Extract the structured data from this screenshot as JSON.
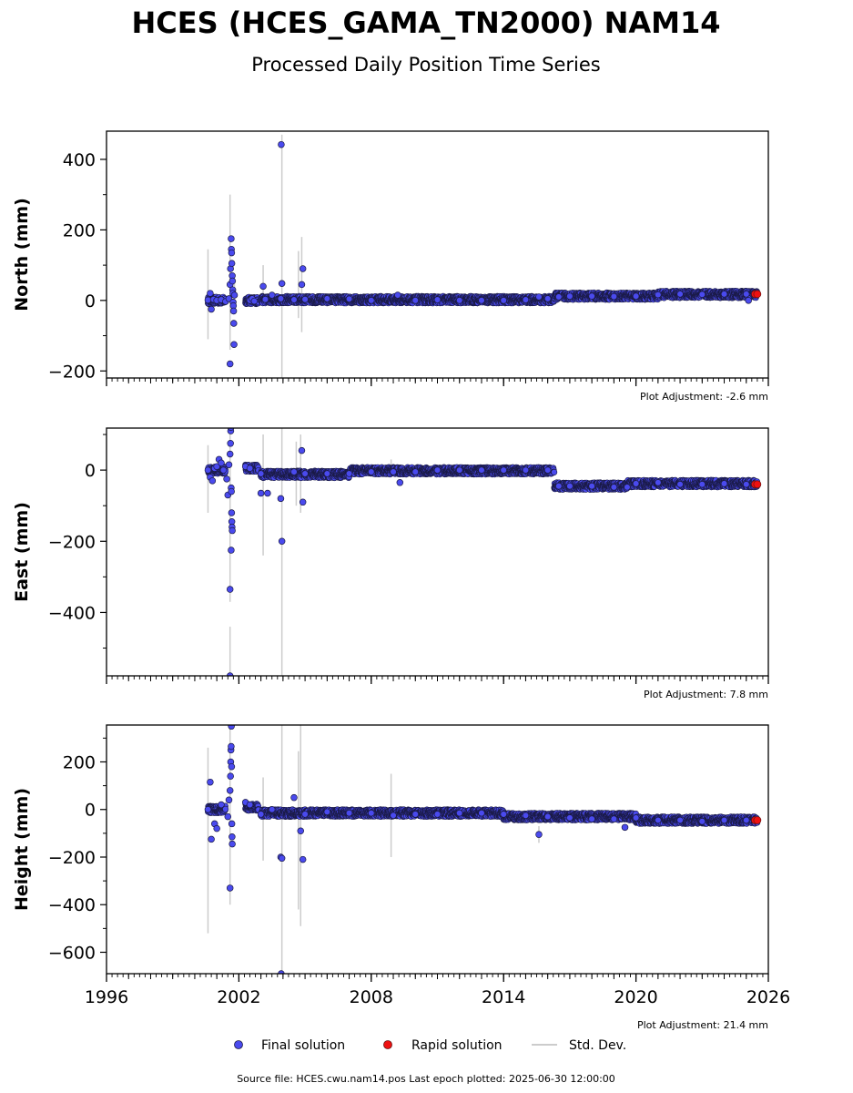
{
  "title": "HCES (HCES_GAMA_TN2000) NAM14",
  "subtitle": "Processed Daily Position Time Series",
  "legend": {
    "final": "Final solution",
    "rapid": "Rapid solution",
    "std": "Std. Dev."
  },
  "footer": "Source file: HCES.cwu.nam14.pos  Last epoch plotted: 2025-06-30 12:00:00",
  "colors": {
    "final": "#4a4aee",
    "final_edge": "#1a1a44",
    "rapid": "#ee1111",
    "std": "#cccccc"
  },
  "chart_data": [
    {
      "type": "scatter",
      "ylabel": "North (mm)",
      "adjustment": "Plot Adjustment: -2.6 mm",
      "xlim": [
        1996,
        2026
      ],
      "ylim": [
        -220,
        480
      ],
      "yticks": [
        -200,
        0,
        200,
        400
      ],
      "xticks": [
        1996,
        2002,
        2008,
        2014,
        2020,
        2026
      ],
      "show_xtick_labels": false,
      "series": [
        {
          "name": "Final solution",
          "points": [
            [
              2000.6,
              1
            ],
            [
              2000.7,
              20
            ],
            [
              2000.75,
              -25
            ],
            [
              2000.85,
              3
            ],
            [
              2001.0,
              0
            ],
            [
              2001.2,
              2
            ],
            [
              2001.4,
              -3
            ],
            [
              2001.55,
              5
            ],
            [
              2001.6,
              45
            ],
            [
              2001.62,
              90
            ],
            [
              2001.65,
              175
            ],
            [
              2001.66,
              145
            ],
            [
              2001.67,
              135
            ],
            [
              2001.68,
              105
            ],
            [
              2001.7,
              70
            ],
            [
              2001.71,
              55
            ],
            [
              2001.72,
              30
            ],
            [
              2001.73,
              20
            ],
            [
              2001.74,
              -5
            ],
            [
              2001.75,
              -15
            ],
            [
              2001.76,
              -30
            ],
            [
              2001.77,
              -65
            ],
            [
              2001.78,
              -125
            ],
            [
              2001.6,
              -180
            ],
            [
              2001.8,
              15
            ],
            [
              2002.5,
              0
            ],
            [
              2002.6,
              5
            ],
            [
              2002.7,
              -2
            ],
            [
              2003.1,
              40
            ],
            [
              2003.2,
              3
            ],
            [
              2003.5,
              15
            ],
            [
              2003.9,
              5
            ],
            [
              2003.95,
              48
            ],
            [
              2003.92,
              442
            ],
            [
              2004.5,
              2
            ],
            [
              2004.85,
              45
            ],
            [
              2004.9,
              90
            ],
            [
              2005.0,
              3
            ],
            [
              2006.0,
              5
            ],
            [
              2007.0,
              4
            ],
            [
              2008.0,
              0
            ],
            [
              2009.2,
              15
            ],
            [
              2010.0,
              0
            ],
            [
              2011.0,
              2
            ],
            [
              2012.0,
              0
            ],
            [
              2013.0,
              0
            ],
            [
              2014.0,
              0
            ],
            [
              2015.0,
              2
            ],
            [
              2015.6,
              10
            ],
            [
              2016.0,
              5
            ],
            [
              2016.5,
              10
            ],
            [
              2017.0,
              12
            ],
            [
              2018.0,
              12
            ],
            [
              2019.0,
              11
            ],
            [
              2020.0,
              12
            ],
            [
              2021.0,
              16
            ],
            [
              2022.0,
              18
            ],
            [
              2023.0,
              17
            ],
            [
              2024.0,
              18
            ],
            [
              2025.0,
              18
            ],
            [
              2025.1,
              0
            ]
          ],
          "bands": [
            [
              2000.6,
              2001.4,
              0
            ],
            [
              2002.3,
              2002.9,
              0
            ],
            [
              2003.0,
              2016.3,
              2
            ],
            [
              2016.3,
              2021.0,
              12
            ],
            [
              2021.0,
              2025.5,
              17
            ]
          ]
        },
        {
          "name": "Rapid solution",
          "points": [
            [
              2025.4,
              18
            ],
            [
              2025.5,
              18
            ]
          ]
        }
      ],
      "std_dev": [
        [
          2000.6,
          -110,
          145
        ],
        [
          2001.6,
          -140,
          300
        ],
        [
          2001.8,
          -20,
          60
        ],
        [
          2003.1,
          -10,
          100
        ],
        [
          2003.95,
          -230,
          470
        ],
        [
          2004.85,
          -90,
          180
        ],
        [
          2004.7,
          -50,
          140
        ]
      ]
    },
    {
      "type": "scatter",
      "ylabel": "East (mm)",
      "adjustment": "Plot Adjustment: 7.8 mm",
      "xlim": [
        1996,
        2026
      ],
      "ylim": [
        -578,
        118
      ],
      "yticks": [
        -400,
        -200,
        0
      ],
      "xticks": [
        1996,
        2002,
        2008,
        2014,
        2020,
        2026
      ],
      "show_xtick_labels": false,
      "series": [
        {
          "name": "Final solution",
          "points": [
            [
              2000.6,
              0
            ],
            [
              2000.7,
              -20
            ],
            [
              2000.8,
              -30
            ],
            [
              2000.9,
              5
            ],
            [
              2001.0,
              10
            ],
            [
              2001.1,
              30
            ],
            [
              2001.2,
              20
            ],
            [
              2001.3,
              0
            ],
            [
              2001.45,
              -25
            ],
            [
              2001.5,
              -70
            ],
            [
              2001.55,
              15
            ],
            [
              2001.6,
              45
            ],
            [
              2001.62,
              75
            ],
            [
              2001.63,
              110
            ],
            [
              2001.64,
              120
            ],
            [
              2001.65,
              -50
            ],
            [
              2001.66,
              -60
            ],
            [
              2001.67,
              -120
            ],
            [
              2001.68,
              -145
            ],
            [
              2001.69,
              -160
            ],
            [
              2001.7,
              -170
            ],
            [
              2001.65,
              -225
            ],
            [
              2001.6,
              -335
            ],
            [
              2001.6,
              -578
            ],
            [
              2002.3,
              10
            ],
            [
              2002.5,
              5
            ],
            [
              2003.0,
              -65
            ],
            [
              2003.3,
              -65
            ],
            [
              2003.0,
              -10
            ],
            [
              2003.9,
              -80
            ],
            [
              2003.95,
              -200
            ],
            [
              2004.5,
              -5
            ],
            [
              2004.85,
              55
            ],
            [
              2004.9,
              -90
            ],
            [
              2005.0,
              -10
            ],
            [
              2006.0,
              -10
            ],
            [
              2007.0,
              -10
            ],
            [
              2008.0,
              -5
            ],
            [
              2009.0,
              -5
            ],
            [
              2009.3,
              -35
            ],
            [
              2010.0,
              -5
            ],
            [
              2011.0,
              0
            ],
            [
              2012.0,
              0
            ],
            [
              2013.0,
              0
            ],
            [
              2014.0,
              0
            ],
            [
              2015.0,
              0
            ],
            [
              2016.0,
              0
            ],
            [
              2016.5,
              -45
            ],
            [
              2017.0,
              -45
            ],
            [
              2018.0,
              -45
            ],
            [
              2019.0,
              -48
            ],
            [
              2019.6,
              -48
            ],
            [
              2020.0,
              -38
            ],
            [
              2021.0,
              -35
            ],
            [
              2022.0,
              -40
            ],
            [
              2023.0,
              -40
            ],
            [
              2024.0,
              -38
            ],
            [
              2025.0,
              -40
            ]
          ],
          "bands": [
            [
              2000.6,
              2001.4,
              0
            ],
            [
              2002.3,
              2002.9,
              5
            ],
            [
              2003.0,
              2007.0,
              -12
            ],
            [
              2007.0,
              2016.3,
              -2
            ],
            [
              2016.3,
              2019.6,
              -45
            ],
            [
              2019.6,
              2025.5,
              -38
            ]
          ]
        },
        {
          "name": "Rapid solution",
          "points": [
            [
              2025.4,
              -40
            ],
            [
              2025.5,
              -40
            ]
          ]
        }
      ],
      "std_dev": [
        [
          2000.6,
          -120,
          70
        ],
        [
          2001.6,
          -370,
          100
        ],
        [
          2001.6,
          -578,
          -440
        ],
        [
          2003.1,
          -240,
          100
        ],
        [
          2003.95,
          -578,
          118
        ],
        [
          2004.8,
          -120,
          100
        ],
        [
          2004.6,
          -100,
          80
        ],
        [
          2008.9,
          -5,
          30
        ]
      ]
    },
    {
      "type": "scatter",
      "ylabel": "Height (mm)",
      "adjustment": "Plot Adjustment: 21.4 mm",
      "xlim": [
        1996,
        2026
      ],
      "ylim": [
        -690,
        355
      ],
      "yticks": [
        -600,
        -400,
        -200,
        0,
        200
      ],
      "xticks": [
        1996,
        2002,
        2008,
        2014,
        2020,
        2026
      ],
      "xtick_labels": [
        "1996",
        "2002",
        "2008",
        "2014",
        "2020",
        "2026"
      ],
      "show_xtick_labels": true,
      "series": [
        {
          "name": "Final solution",
          "points": [
            [
              2000.6,
              0
            ],
            [
              2000.7,
              115
            ],
            [
              2000.75,
              -125
            ],
            [
              2000.9,
              -60
            ],
            [
              2001.0,
              -80
            ],
            [
              2001.2,
              20
            ],
            [
              2001.5,
              -30
            ],
            [
              2001.55,
              40
            ],
            [
              2001.6,
              80
            ],
            [
              2001.62,
              140
            ],
            [
              2001.63,
              200
            ],
            [
              2001.64,
              250
            ],
            [
              2001.65,
              265
            ],
            [
              2001.66,
              350
            ],
            [
              2001.67,
              180
            ],
            [
              2001.68,
              -60
            ],
            [
              2001.69,
              -115
            ],
            [
              2001.7,
              -145
            ],
            [
              2001.6,
              -330
            ],
            [
              2002.3,
              30
            ],
            [
              2002.5,
              20
            ],
            [
              2003.0,
              -20
            ],
            [
              2003.5,
              0
            ],
            [
              2003.9,
              -200
            ],
            [
              2003.95,
              -205
            ],
            [
              2003.92,
              -690
            ],
            [
              2004.5,
              50
            ],
            [
              2004.8,
              -90
            ],
            [
              2004.9,
              -210
            ],
            [
              2005.0,
              -20
            ],
            [
              2006.0,
              -10
            ],
            [
              2007.0,
              -15
            ],
            [
              2008.0,
              -15
            ],
            [
              2009.0,
              -25
            ],
            [
              2010.0,
              -20
            ],
            [
              2011.0,
              -20
            ],
            [
              2012.0,
              -15
            ],
            [
              2013.0,
              -15
            ],
            [
              2014.0,
              -20
            ],
            [
              2015.0,
              -25
            ],
            [
              2015.6,
              -105
            ],
            [
              2016.0,
              -30
            ],
            [
              2017.0,
              -35
            ],
            [
              2018.0,
              -40
            ],
            [
              2019.0,
              -40
            ],
            [
              2019.5,
              -75
            ],
            [
              2020.0,
              -35
            ],
            [
              2021.0,
              -45
            ],
            [
              2022.0,
              -45
            ],
            [
              2023.0,
              -50
            ],
            [
              2024.0,
              -45
            ],
            [
              2025.0,
              -45
            ]
          ],
          "bands": [
            [
              2000.6,
              2001.4,
              0
            ],
            [
              2002.3,
              2002.9,
              10
            ],
            [
              2003.0,
              2006.0,
              -15
            ],
            [
              2006.0,
              2014.0,
              -15
            ],
            [
              2014.0,
              2020.0,
              -30
            ],
            [
              2020.0,
              2025.5,
              -45
            ]
          ]
        },
        {
          "name": "Rapid solution",
          "points": [
            [
              2025.4,
              -45
            ],
            [
              2025.5,
              -45
            ]
          ]
        }
      ],
      "std_dev": [
        [
          2000.6,
          -520,
          260
        ],
        [
          2001.6,
          -400,
          355
        ],
        [
          2003.1,
          -215,
          135
        ],
        [
          2003.95,
          -690,
          355
        ],
        [
          2004.8,
          -490,
          355
        ],
        [
          2004.7,
          -420,
          245
        ],
        [
          2008.9,
          -200,
          150
        ],
        [
          2015.6,
          -140,
          -70
        ]
      ]
    }
  ]
}
